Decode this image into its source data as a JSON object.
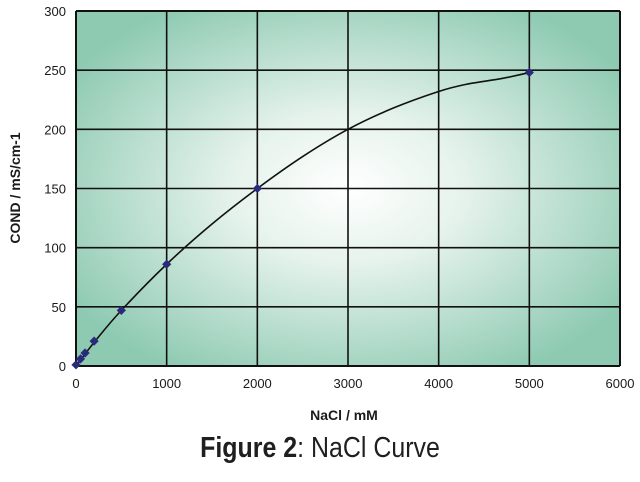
{
  "caption": {
    "label": "Figure 2",
    "separator": ":",
    "text": " NaCl Curve"
  },
  "chart_data": {
    "type": "line",
    "xlabel": "NaCl / mM",
    "ylabel": "COND / mS/cm-1",
    "xlim": [
      0,
      6000
    ],
    "ylim": [
      0,
      300
    ],
    "x_ticks": [
      0,
      1000,
      2000,
      3000,
      4000,
      5000,
      6000
    ],
    "y_ticks": [
      0,
      50,
      100,
      150,
      200,
      250,
      300
    ],
    "grid": true,
    "legend": "none",
    "series": [
      {
        "marker": "diamond",
        "x": [
          0,
          50,
          100,
          200,
          500,
          1000,
          2000,
          5000
        ],
        "y": [
          1,
          6,
          11,
          21,
          47,
          86,
          150,
          248
        ]
      }
    ],
    "fit_curve": {
      "x": [
        0,
        200,
        500,
        1000,
        1500,
        2000,
        2500,
        3000,
        3500,
        4000,
        4300,
        4700,
        5000
      ],
      "y": [
        0,
        20,
        47,
        86,
        120,
        150,
        177,
        200,
        218,
        232,
        238,
        243,
        248
      ]
    },
    "colors": {
      "marker": "#2a2a7a",
      "line": "#111111",
      "grid": "#111111",
      "plot_center": "#ffffff",
      "plot_edge": "#8ecab2"
    }
  }
}
